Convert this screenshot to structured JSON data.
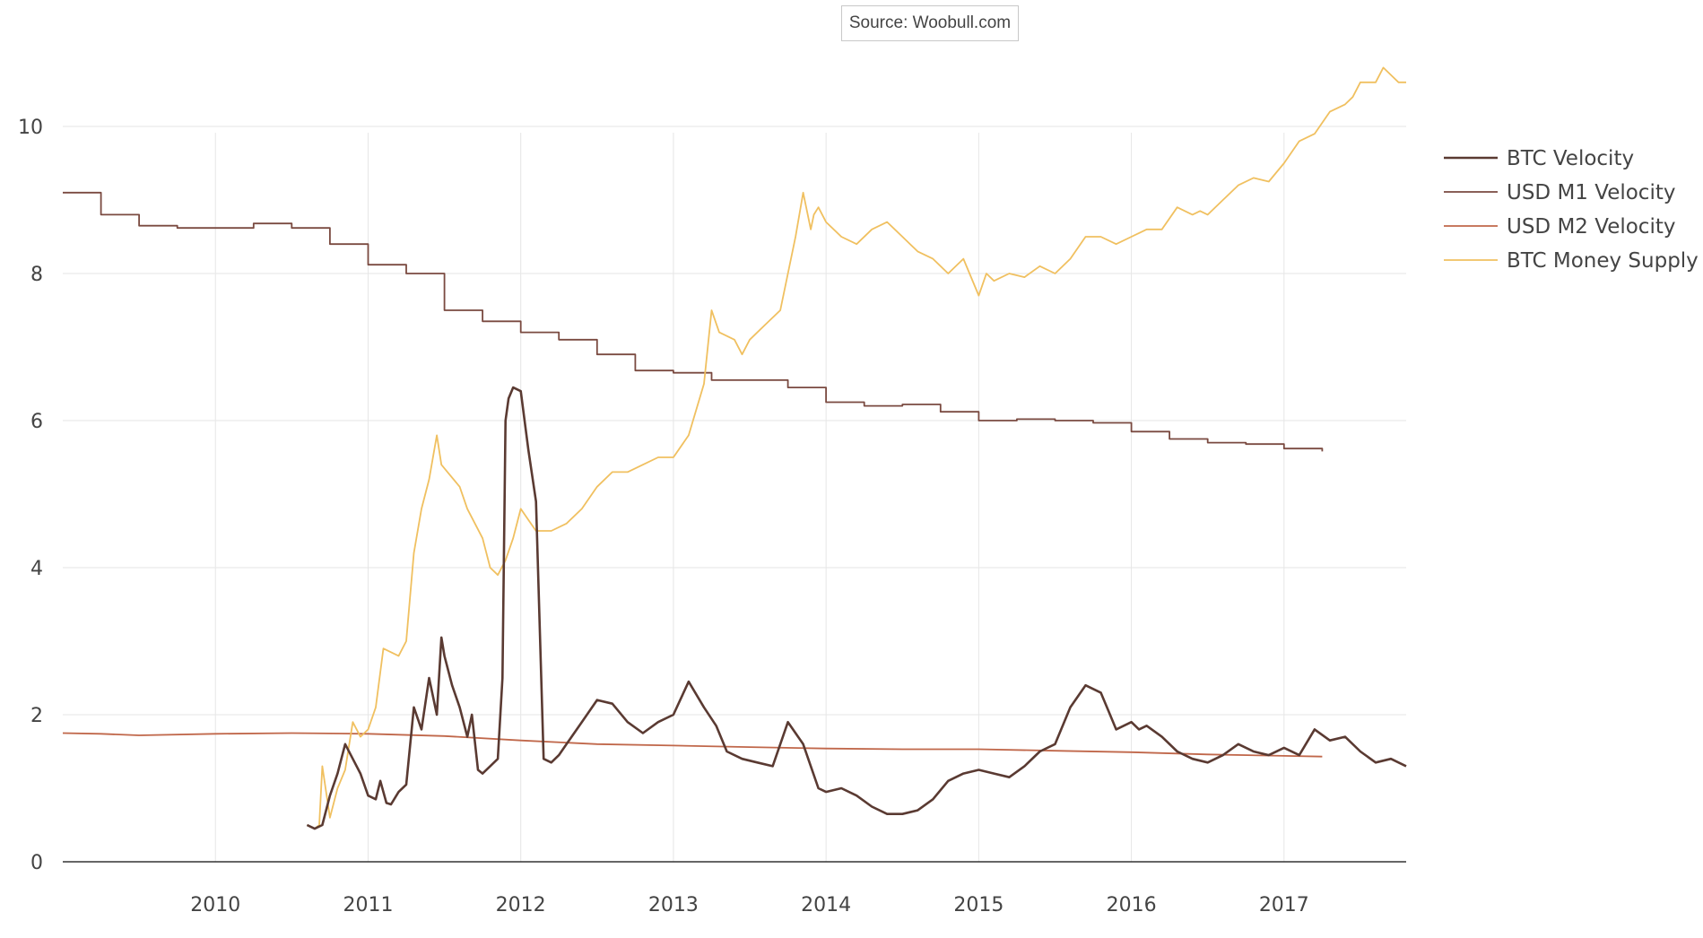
{
  "source": "Source: Woobull.com",
  "chart_data": {
    "type": "line",
    "title": "",
    "xlabel": "",
    "ylabel": "",
    "xlim": [
      2009.0,
      2017.8
    ],
    "ylim": [
      0,
      10.5
    ],
    "grid": true,
    "legend_position": "top-right",
    "x_ticks": [
      2010,
      2011,
      2012,
      2013,
      2014,
      2015,
      2016,
      2017
    ],
    "x_tick_labels": [
      "2010",
      "2011",
      "2012",
      "2013",
      "2014",
      "2015",
      "2016",
      "2017"
    ],
    "y_ticks": [
      0,
      2,
      4,
      6,
      8,
      10
    ],
    "y_tick_labels": [
      "0",
      "2",
      "4",
      "6",
      "8",
      "10"
    ],
    "series": [
      {
        "name": "BTC Velocity",
        "color": "#5a3a32",
        "step": false,
        "x": [
          2010.6,
          2010.65,
          2010.7,
          2010.75,
          2010.8,
          2010.85,
          2010.9,
          2010.95,
          2011.0,
          2011.05,
          2011.08,
          2011.12,
          2011.15,
          2011.2,
          2011.25,
          2011.3,
          2011.35,
          2011.4,
          2011.45,
          2011.48,
          2011.5,
          2011.55,
          2011.6,
          2011.65,
          2011.68,
          2011.72,
          2011.75,
          2011.8,
          2011.85,
          2011.88,
          2011.9,
          2011.92,
          2011.95,
          2012.0,
          2012.05,
          2012.1,
          2012.15,
          2012.2,
          2012.25,
          2012.3,
          2012.4,
          2012.5,
          2012.6,
          2012.7,
          2012.8,
          2012.9,
          2013.0,
          2013.1,
          2013.2,
          2013.28,
          2013.35,
          2013.45,
          2013.55,
          2013.65,
          2013.75,
          2013.85,
          2013.9,
          2013.95,
          2014.0,
          2014.1,
          2014.2,
          2014.3,
          2014.4,
          2014.5,
          2014.6,
          2014.7,
          2014.8,
          2014.9,
          2015.0,
          2015.1,
          2015.2,
          2015.3,
          2015.4,
          2015.5,
          2015.6,
          2015.7,
          2015.8,
          2015.85,
          2015.9,
          2015.95,
          2016.0,
          2016.05,
          2016.1,
          2016.2,
          2016.3,
          2016.4,
          2016.5,
          2016.6,
          2016.7,
          2016.8,
          2016.9,
          2017.0,
          2017.1,
          2017.2,
          2017.3,
          2017.4,
          2017.5,
          2017.6,
          2017.7,
          2017.8
        ],
        "y": [
          0.5,
          0.45,
          0.5,
          0.9,
          1.2,
          1.6,
          1.4,
          1.2,
          0.9,
          0.85,
          1.1,
          0.8,
          0.78,
          0.95,
          1.05,
          2.1,
          1.8,
          2.5,
          2.0,
          3.05,
          2.8,
          2.4,
          2.1,
          1.7,
          2.0,
          1.25,
          1.2,
          1.3,
          1.4,
          2.5,
          6.0,
          6.3,
          6.45,
          6.4,
          5.6,
          4.9,
          1.4,
          1.35,
          1.45,
          1.6,
          1.9,
          2.2,
          2.15,
          1.9,
          1.75,
          1.9,
          2.0,
          2.45,
          2.1,
          1.85,
          1.5,
          1.4,
          1.35,
          1.3,
          1.9,
          1.6,
          1.3,
          1.0,
          0.95,
          1.0,
          0.9,
          0.75,
          0.65,
          0.65,
          0.7,
          0.85,
          1.1,
          1.2,
          1.25,
          1.2,
          1.15,
          1.3,
          1.5,
          1.6,
          2.1,
          2.4,
          2.3,
          2.05,
          1.8,
          1.85,
          1.9,
          1.8,
          1.85,
          1.7,
          1.5,
          1.4,
          1.35,
          1.45,
          1.6,
          1.5,
          1.45,
          1.55,
          1.45,
          1.8,
          1.65,
          1.7,
          1.5,
          1.35,
          1.4,
          1.3
        ]
      },
      {
        "name": "USD M1 Velocity",
        "color": "#7a4a40",
        "step": true,
        "x": [
          2009.0,
          2009.25,
          2009.5,
          2009.75,
          2010.0,
          2010.25,
          2010.5,
          2010.75,
          2011.0,
          2011.25,
          2011.5,
          2011.75,
          2012.0,
          2012.25,
          2012.5,
          2012.75,
          2013.0,
          2013.25,
          2013.5,
          2013.75,
          2014.0,
          2014.25,
          2014.5,
          2014.75,
          2015.0,
          2015.25,
          2015.5,
          2015.75,
          2016.0,
          2016.25,
          2016.5,
          2016.75,
          2017.0,
          2017.25
        ],
        "y": [
          9.1,
          8.8,
          8.65,
          8.62,
          8.62,
          8.68,
          8.62,
          8.4,
          8.12,
          8.0,
          7.5,
          7.35,
          7.2,
          7.1,
          6.9,
          6.68,
          6.65,
          6.55,
          6.55,
          6.45,
          6.25,
          6.2,
          6.22,
          6.12,
          6.0,
          6.02,
          6.0,
          5.97,
          5.85,
          5.75,
          5.7,
          5.68,
          5.62,
          5.58
        ]
      },
      {
        "name": "USD M2 Velocity",
        "color": "#c0674a",
        "step": false,
        "x": [
          2009.0,
          2009.25,
          2009.5,
          2010.0,
          2010.5,
          2011.0,
          2011.5,
          2012.0,
          2012.5,
          2013.0,
          2013.5,
          2014.0,
          2014.5,
          2015.0,
          2015.5,
          2016.0,
          2016.5,
          2017.0,
          2017.25
        ],
        "y": [
          1.75,
          1.74,
          1.72,
          1.74,
          1.75,
          1.74,
          1.71,
          1.65,
          1.6,
          1.58,
          1.56,
          1.54,
          1.53,
          1.53,
          1.51,
          1.49,
          1.46,
          1.44,
          1.43
        ]
      },
      {
        "name": "BTC Money Supply",
        "color": "#f0c060",
        "step": false,
        "x": [
          2010.6,
          2010.65,
          2010.68,
          2010.7,
          2010.75,
          2010.8,
          2010.85,
          2010.9,
          2010.95,
          2011.0,
          2011.05,
          2011.1,
          2011.15,
          2011.2,
          2011.25,
          2011.3,
          2011.35,
          2011.4,
          2011.45,
          2011.48,
          2011.52,
          2011.6,
          2011.65,
          2011.7,
          2011.75,
          2011.8,
          2011.85,
          2011.9,
          2011.95,
          2012.0,
          2012.05,
          2012.1,
          2012.2,
          2012.3,
          2012.4,
          2012.5,
          2012.6,
          2012.7,
          2012.8,
          2012.9,
          2013.0,
          2013.1,
          2013.2,
          2013.25,
          2013.3,
          2013.4,
          2013.45,
          2013.5,
          2013.6,
          2013.7,
          2013.8,
          2013.85,
          2013.9,
          2013.92,
          2013.95,
          2014.0,
          2014.1,
          2014.2,
          2014.3,
          2014.4,
          2014.5,
          2014.6,
          2014.7,
          2014.8,
          2014.9,
          2015.0,
          2015.05,
          2015.1,
          2015.2,
          2015.3,
          2015.4,
          2015.5,
          2015.6,
          2015.7,
          2015.8,
          2015.9,
          2016.0,
          2016.1,
          2016.2,
          2016.3,
          2016.4,
          2016.45,
          2016.5,
          2016.6,
          2016.7,
          2016.8,
          2016.9,
          2017.0,
          2017.1,
          2017.2,
          2017.3,
          2017.4,
          2017.45,
          2017.5,
          2017.6,
          2017.65,
          2017.7,
          2017.75,
          2017.8
        ],
        "y": [
          0.5,
          0.45,
          0.5,
          1.3,
          0.6,
          1.0,
          1.25,
          1.9,
          1.7,
          1.8,
          2.1,
          2.9,
          2.85,
          2.8,
          3.0,
          4.2,
          4.8,
          5.2,
          5.8,
          5.4,
          5.3,
          5.1,
          4.8,
          4.6,
          4.4,
          4.0,
          3.9,
          4.1,
          4.4,
          4.8,
          4.65,
          4.5,
          4.5,
          4.6,
          4.8,
          5.1,
          5.3,
          5.3,
          5.4,
          5.5,
          5.5,
          5.8,
          6.5,
          7.5,
          7.2,
          7.1,
          6.9,
          7.1,
          7.3,
          7.5,
          8.5,
          9.1,
          8.6,
          8.8,
          8.9,
          8.7,
          8.5,
          8.4,
          8.6,
          8.7,
          8.5,
          8.3,
          8.2,
          8.0,
          8.2,
          7.7,
          8.0,
          7.9,
          8.0,
          7.95,
          8.1,
          8.0,
          8.2,
          8.5,
          8.5,
          8.4,
          8.5,
          8.6,
          8.6,
          8.9,
          8.8,
          8.85,
          8.8,
          9.0,
          9.2,
          9.3,
          9.25,
          9.5,
          9.8,
          9.9,
          10.2,
          10.3,
          10.4,
          10.6,
          10.6,
          10.8,
          10.7,
          10.6,
          10.6
        ]
      }
    ]
  }
}
